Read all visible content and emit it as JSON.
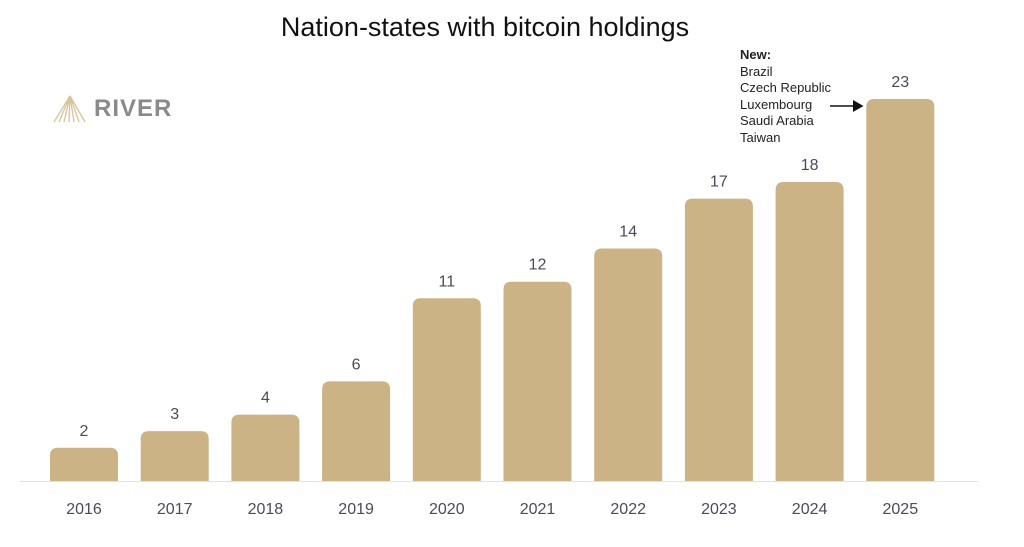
{
  "chart_data": {
    "type": "bar",
    "title": "Nation-states with bitcoin holdings",
    "categories": [
      "2016",
      "2017",
      "2018",
      "2019",
      "2020",
      "2021",
      "2022",
      "2023",
      "2024",
      "2025"
    ],
    "values": [
      2,
      3,
      4,
      6,
      11,
      12,
      14,
      17,
      18,
      23
    ],
    "xlabel": "",
    "ylabel": "",
    "ylim": [
      0,
      23
    ],
    "grid": false,
    "bar_color": "#cbb386",
    "annotation": {
      "heading": "New:",
      "items": [
        "Brazil",
        "Czech Republic",
        "Luxembourg",
        "Saudi Arabia",
        "Taiwan"
      ],
      "target_category": "2025"
    }
  },
  "logo": {
    "text": "RIVER"
  }
}
